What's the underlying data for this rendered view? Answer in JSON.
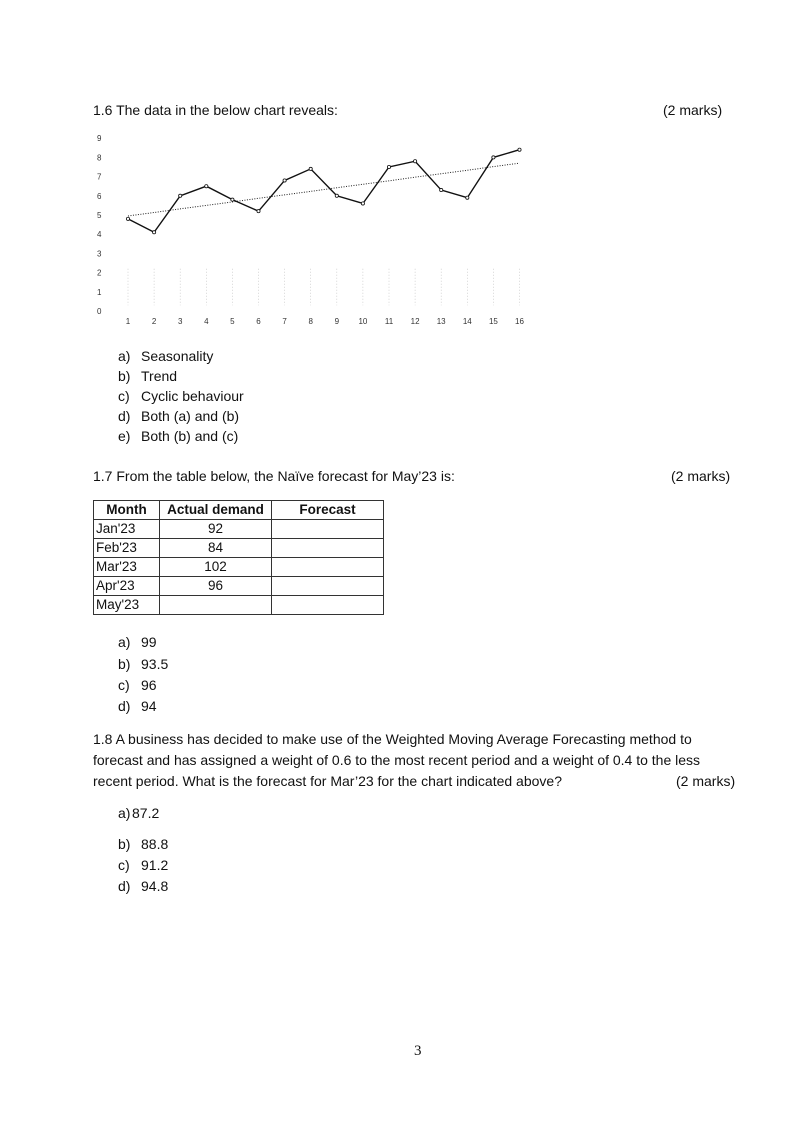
{
  "q16": {
    "question": "1.6 The data in the below chart reveals:",
    "marks": "(2 marks)",
    "options": [
      {
        "letter": "a)",
        "text": "Seasonality"
      },
      {
        "letter": "b)",
        "text": "Trend"
      },
      {
        "letter": "c)",
        "text": "Cyclic behaviour"
      },
      {
        "letter": "d)",
        "text": "Both (a) and (b)"
      },
      {
        "letter": "e)",
        "text": "Both (b) and (c)"
      }
    ]
  },
  "chart_data": {
    "type": "line",
    "x": [
      1,
      2,
      3,
      4,
      5,
      6,
      7,
      8,
      9,
      10,
      11,
      12,
      13,
      14,
      15,
      16
    ],
    "series": [
      {
        "values": [
          4.8,
          4.1,
          6.0,
          6.5,
          5.8,
          5.2,
          6.8,
          7.4,
          6.0,
          5.6,
          7.5,
          7.8,
          6.3,
          5.9,
          8.0,
          8.4
        ],
        "style": "solid",
        "markers": true
      },
      {
        "values": [
          4.95,
          5.13,
          5.32,
          5.5,
          5.68,
          5.87,
          6.05,
          6.23,
          6.42,
          6.6,
          6.78,
          6.97,
          7.15,
          7.33,
          7.52,
          7.7
        ],
        "style": "dotted-trendline"
      }
    ],
    "yticks": [
      "0",
      "1",
      "2",
      "3",
      "4",
      "5",
      "6",
      "7",
      "8",
      "9"
    ],
    "xticks": [
      "1",
      "2",
      "3",
      "4",
      "5",
      "6",
      "7",
      "8",
      "9",
      "10",
      "11",
      "12",
      "13",
      "14",
      "15",
      "16"
    ],
    "ylim": [
      0,
      9
    ],
    "xlim": [
      1,
      16
    ],
    "grid": false,
    "title": "",
    "xlabel": "",
    "ylabel": ""
  },
  "q17": {
    "question": "1.7 From the table below, the Naïve forecast for May’23 is:",
    "marks": "(2 marks)",
    "table": {
      "headers": [
        "Month",
        "Actual demand",
        "Forecast"
      ],
      "rows": [
        [
          "Jan'23",
          "92",
          ""
        ],
        [
          "Feb'23",
          "84",
          ""
        ],
        [
          "Mar'23",
          "102",
          ""
        ],
        [
          "Apr'23",
          "96",
          ""
        ],
        [
          "May'23",
          "",
          ""
        ]
      ]
    },
    "options": [
      {
        "letter": "a)",
        "text": "99"
      },
      {
        "letter": "b)",
        "text": "93.5"
      },
      {
        "letter": "c)",
        "text": "96"
      },
      {
        "letter": "d)",
        "text": "94"
      }
    ]
  },
  "q18": {
    "line1": "1.8 A business has decided to make use of the Weighted Moving Average Forecasting method to",
    "line2": "forecast and has assigned a weight of 0.6 to the most recent period and a weight of 0.4 to the less",
    "line3": "recent period. What is the forecast for Mar’23 for the chart indicated above?",
    "marks": "(2 marks)",
    "options": [
      {
        "letter": "a)",
        "text": "87.2"
      },
      {
        "letter": "b)",
        "text": "88.8"
      },
      {
        "letter": "c)",
        "text": "91.2"
      },
      {
        "letter": "d)",
        "text": "94.8"
      }
    ]
  },
  "page_number": "3"
}
